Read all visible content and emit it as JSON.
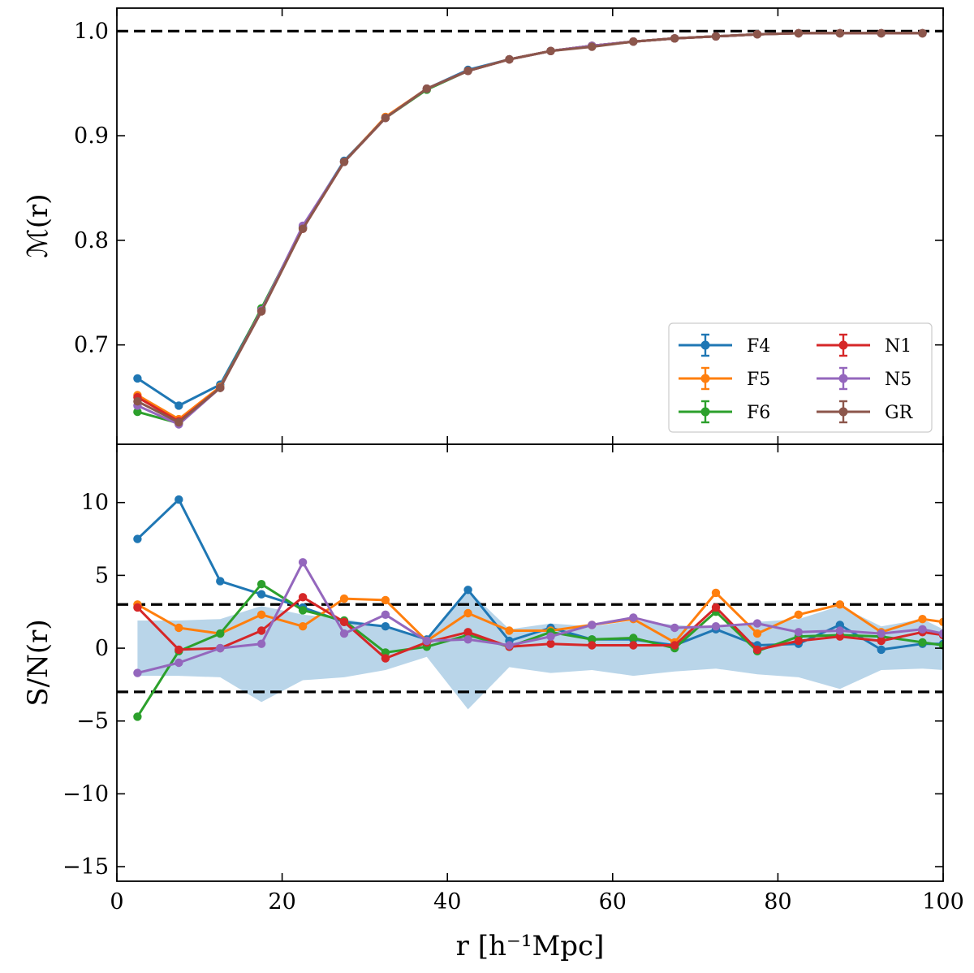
{
  "chart_data": [
    {
      "type": "line",
      "title": "",
      "xlabel": "",
      "ylabel": "ℳ(r)",
      "xlim": [
        0,
        100
      ],
      "ylim": [
        0.605,
        1.022
      ],
      "x_ticks": [
        0,
        20,
        40,
        60,
        80,
        100
      ],
      "y_ticks": [
        0.7,
        0.8,
        0.9,
        1.0
      ],
      "y_tick_labels": [
        "0.7",
        "0.8",
        "0.9",
        "1.0"
      ],
      "reference_lines": [
        1.0
      ],
      "legend_position": "lower-right",
      "legend_columns": 2,
      "x": [
        2.5,
        7.5,
        12.5,
        17.5,
        22.5,
        27.5,
        32.5,
        37.5,
        42.5,
        47.5,
        52.5,
        57.5,
        62.5,
        67.5,
        72.5,
        77.5,
        82.5,
        87.5,
        92.5,
        97.5
      ],
      "series": [
        {
          "name": "F4",
          "color": "#1f77b4",
          "values": [
            0.668,
            0.642,
            0.662,
            0.734,
            0.813,
            0.876,
            0.917,
            0.945,
            0.963,
            0.973,
            0.981,
            0.986,
            0.99,
            0.993,
            0.995,
            0.997,
            0.998,
            0.998,
            0.998,
            0.998
          ]
        },
        {
          "name": "F5",
          "color": "#ff7f0e",
          "values": [
            0.652,
            0.629,
            0.66,
            0.733,
            0.812,
            0.875,
            0.918,
            0.945,
            0.962,
            0.973,
            0.981,
            0.986,
            0.99,
            0.993,
            0.995,
            0.997,
            0.998,
            0.998,
            0.998,
            0.998
          ]
        },
        {
          "name": "F6",
          "color": "#2ca02c",
          "values": [
            0.636,
            0.625,
            0.659,
            0.735,
            0.812,
            0.875,
            0.917,
            0.944,
            0.962,
            0.973,
            0.981,
            0.986,
            0.99,
            0.993,
            0.995,
            0.997,
            0.998,
            0.998,
            0.998,
            0.998
          ]
        },
        {
          "name": "N1",
          "color": "#d62728",
          "values": [
            0.65,
            0.627,
            0.659,
            0.733,
            0.811,
            0.875,
            0.917,
            0.945,
            0.962,
            0.973,
            0.981,
            0.986,
            0.99,
            0.993,
            0.995,
            0.997,
            0.998,
            0.998,
            0.998,
            0.998
          ]
        },
        {
          "name": "N5",
          "color": "#9467bd",
          "values": [
            0.642,
            0.624,
            0.659,
            0.733,
            0.814,
            0.875,
            0.917,
            0.945,
            0.962,
            0.973,
            0.981,
            0.986,
            0.99,
            0.993,
            0.995,
            0.997,
            0.998,
            0.998,
            0.998,
            0.998
          ]
        },
        {
          "name": "GR",
          "color": "#8c564b",
          "values": [
            0.646,
            0.626,
            0.659,
            0.732,
            0.811,
            0.875,
            0.917,
            0.945,
            0.962,
            0.973,
            0.981,
            0.985,
            0.99,
            0.993,
            0.995,
            0.997,
            0.998,
            0.998,
            0.998,
            0.998
          ]
        }
      ]
    },
    {
      "type": "line",
      "title": "",
      "xlabel": "r [h⁻¹Mpc]",
      "ylabel": "S/N(r)",
      "xlim": [
        0,
        100
      ],
      "ylim": [
        -16,
        14
      ],
      "x_ticks": [
        0,
        20,
        40,
        60,
        80,
        100
      ],
      "x_tick_labels": [
        "0",
        "20",
        "40",
        "60",
        "80",
        "100"
      ],
      "y_ticks": [
        -15,
        -10,
        -5,
        0,
        5,
        10
      ],
      "y_tick_labels": [
        "−15",
        "−10",
        "−5",
        "0",
        "5",
        "10"
      ],
      "reference_lines": [
        3,
        -3
      ],
      "x": [
        2.5,
        7.5,
        12.5,
        17.5,
        22.5,
        27.5,
        32.5,
        37.5,
        42.5,
        47.5,
        52.5,
        57.5,
        62.5,
        67.5,
        72.5,
        77.5,
        82.5,
        87.5,
        92.5,
        97.5,
        100
      ],
      "band": {
        "color": "#b9d5e9",
        "upper": [
          1.9,
          1.9,
          2.0,
          2.9,
          2.3,
          2.0,
          1.5,
          0.6,
          4.0,
          1.3,
          1.7,
          1.5,
          1.9,
          1.6,
          1.4,
          1.8,
          2.0,
          2.9,
          1.5,
          2.0,
          1.3
        ],
        "lower": [
          -1.9,
          -1.9,
          -2.0,
          -3.7,
          -2.2,
          -2.0,
          -1.5,
          -0.6,
          -4.2,
          -1.3,
          -1.7,
          -1.5,
          -1.9,
          -1.6,
          -1.4,
          -1.8,
          -2.0,
          -2.8,
          -1.5,
          -1.4,
          -1.5
        ]
      },
      "series": [
        {
          "name": "F4",
          "color": "#1f77b4",
          "values": [
            7.5,
            10.2,
            4.6,
            3.7,
            2.8,
            1.8,
            1.5,
            0.6,
            4.0,
            0.5,
            1.4,
            0.6,
            0.6,
            0.2,
            1.3,
            0.2,
            0.3,
            1.6,
            -0.1,
            0.3,
            0.3
          ]
        },
        {
          "name": "F5",
          "color": "#ff7f0e",
          "values": [
            3.0,
            1.4,
            1.0,
            2.3,
            1.5,
            3.4,
            3.3,
            0.5,
            2.4,
            1.2,
            1.2,
            1.6,
            2.0,
            0.4,
            3.8,
            1.0,
            2.3,
            3.0,
            1.1,
            2.0,
            1.8
          ]
        },
        {
          "name": "F6",
          "color": "#2ca02c",
          "values": [
            -4.7,
            -0.2,
            1.0,
            4.4,
            2.6,
            1.9,
            -0.3,
            0.1,
            0.9,
            0.1,
            1.1,
            0.6,
            0.7,
            0.0,
            2.5,
            -0.2,
            0.8,
            0.9,
            0.8,
            0.4,
            0.2
          ]
        },
        {
          "name": "N1",
          "color": "#d62728",
          "values": [
            2.8,
            -0.1,
            0.0,
            1.2,
            3.5,
            1.8,
            -0.7,
            0.4,
            1.1,
            0.1,
            0.3,
            0.2,
            0.2,
            0.2,
            2.8,
            -0.1,
            0.5,
            0.8,
            0.5,
            1.1,
            0.9
          ]
        },
        {
          "name": "N5",
          "color": "#9467bd",
          "values": [
            -1.7,
            -1.0,
            0.0,
            0.3,
            5.9,
            1.0,
            2.3,
            0.5,
            0.6,
            0.2,
            0.8,
            1.6,
            2.1,
            1.4,
            1.5,
            1.7,
            1.1,
            1.2,
            1.0,
            1.3,
            1.0
          ]
        }
      ]
    }
  ]
}
